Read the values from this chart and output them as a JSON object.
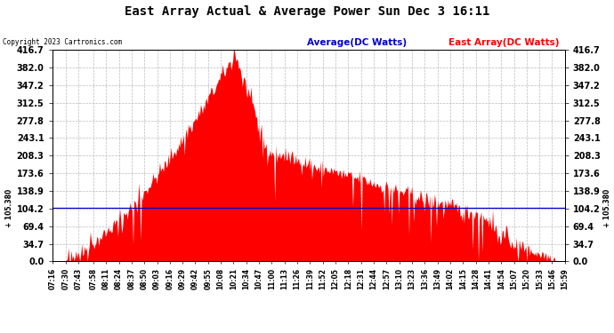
{
  "title": "East Array Actual & Average Power Sun Dec 3 16:11",
  "copyright": "Copyright 2023 Cartronics.com",
  "legend_avg": "Average(DC Watts)",
  "legend_east": "East Array(DC Watts)",
  "avg_value": 105.38,
  "ylim_min": 0.0,
  "ylim_max": 416.7,
  "yticks": [
    0.0,
    34.7,
    69.4,
    104.2,
    138.9,
    173.6,
    208.3,
    243.1,
    277.8,
    312.5,
    347.2,
    382.0,
    416.7
  ],
  "bg_color": "#ffffff",
  "fill_color": "#ff0000",
  "avg_line_color": "#0000cc",
  "title_color": "#000000",
  "copyright_color": "#000000",
  "legend_avg_color": "#0000cc",
  "legend_east_color": "#ff0000",
  "grid_color": "#aaaaaa",
  "x_tick_labels": [
    "07:16",
    "07:30",
    "07:43",
    "07:58",
    "08:11",
    "08:24",
    "08:37",
    "08:50",
    "09:03",
    "09:16",
    "09:29",
    "09:42",
    "09:55",
    "10:08",
    "10:21",
    "10:34",
    "10:47",
    "11:00",
    "11:13",
    "11:26",
    "11:39",
    "11:52",
    "12:05",
    "12:18",
    "12:31",
    "12:44",
    "12:57",
    "13:10",
    "13:23",
    "13:36",
    "13:49",
    "14:02",
    "14:15",
    "14:28",
    "14:41",
    "14:54",
    "15:07",
    "15:20",
    "15:33",
    "15:46",
    "15:59"
  ],
  "n_points": 540,
  "seed": 42
}
